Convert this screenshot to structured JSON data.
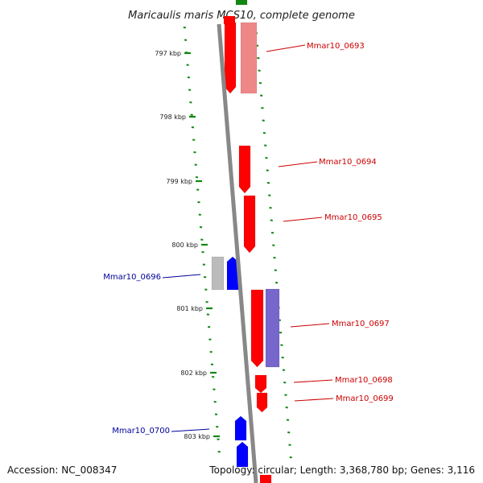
{
  "title": "Maricaulis maris MCS10, complete genome",
  "footer": {
    "accession": "Accession: NC_008347",
    "topology": "Topology: circular; Length: 3,368,780 bp; Genes: 3,116"
  },
  "colors": {
    "forward": "#ff0000",
    "forward_light": "#ee8888",
    "reverse": "#0000ff",
    "reverse_light": "#7766cc",
    "grey_gene": "#bbbbbb",
    "green_gene": "#118811",
    "backbone": "#888888",
    "ruler": "#118811",
    "label_forward": "#cc0000",
    "label_reverse": "#000099"
  },
  "ticks": [
    "797 kbp",
    "798 kbp",
    "799 kbp",
    "800 kbp",
    "801 kbp",
    "802 kbp",
    "803 kbp"
  ],
  "genes": [
    {
      "label": "Mmar10_0693",
      "strand": "forward"
    },
    {
      "label": "Mmar10_0694",
      "strand": "forward"
    },
    {
      "label": "Mmar10_0695",
      "strand": "forward"
    },
    {
      "label": "Mmar10_0696",
      "strand": "reverse"
    },
    {
      "label": "Mmar10_0697",
      "strand": "forward"
    },
    {
      "label": "Mmar10_0698",
      "strand": "forward"
    },
    {
      "label": "Mmar10_0699",
      "strand": "forward"
    },
    {
      "label": "Mmar10_0700",
      "strand": "reverse"
    }
  ]
}
